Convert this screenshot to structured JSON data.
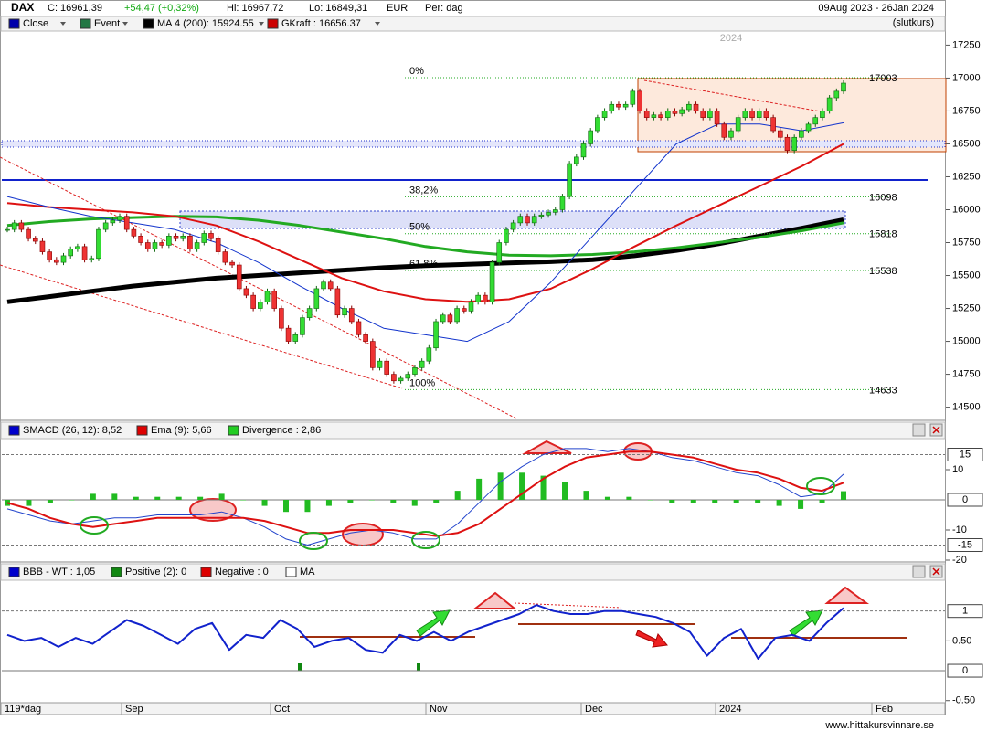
{
  "chart_data": [
    {
      "type": "candlestick",
      "title": "DAX",
      "quote": [
        "C: 16961,39",
        "+54,47 (+0,32%)",
        "Hi: 16967,72",
        "Lo: 16849,31",
        "EUR",
        "Per: dag"
      ],
      "date_range": "09Aug 2023 - 26Jan 2024",
      "price_basis": "(slutkurs)",
      "year_marker": "2024",
      "legend": [
        {
          "label": "Close",
          "color": "#0000aa"
        },
        {
          "label": "Event",
          "color": "#227744"
        },
        {
          "label": "MA 4 (200): 15924.55",
          "color": "#000000"
        },
        {
          "label": "GKraft : 16656.37",
          "color": "#cc0000"
        }
      ],
      "close": [
        15850,
        15900,
        15850,
        15780,
        15760,
        15680,
        15620,
        15600,
        15650,
        15700,
        15720,
        15620,
        15630,
        15850,
        15900,
        15920,
        15950,
        15850,
        15800,
        15750,
        15700,
        15750,
        15730,
        15800,
        15780,
        15800,
        15700,
        15750,
        15820,
        15780,
        15680,
        15600,
        15580,
        15400,
        15350,
        15250,
        15300,
        15380,
        15250,
        15100,
        15000,
        15050,
        15180,
        15250,
        15400,
        15450,
        15400,
        15200,
        15250,
        15150,
        15050,
        15000,
        14800,
        14850,
        14750,
        14700,
        14720,
        14750,
        14800,
        14850,
        14950,
        15150,
        15200,
        15150,
        15250,
        15230,
        15300,
        15350,
        15300,
        15600,
        15750,
        15850,
        15900,
        15950,
        15900,
        15950,
        15960,
        15980,
        16000,
        16100,
        16350,
        16400,
        16500,
        16600,
        16700,
        16750,
        16800,
        16780,
        16800,
        16900,
        16750,
        16700,
        16720,
        16700,
        16750,
        16730,
        16760,
        16800,
        16750,
        16700,
        16750,
        16650,
        16550,
        16600,
        16700,
        16750,
        16700,
        16750,
        16700,
        16600,
        16550,
        16450,
        16550,
        16600,
        16650,
        16700,
        16750,
        16850,
        16900,
        16961.39
      ],
      "up_color": "#33dd33",
      "down_color": "#ee3333",
      "series": [
        {
          "color": "#000000",
          "width": 5,
          "values": [
            15300,
            15340,
            15380,
            15420,
            15450,
            15480,
            15500,
            15520,
            15540,
            15560,
            15575,
            15585,
            15595,
            15605,
            15620,
            15650,
            15690,
            15740,
            15800,
            15860,
            15924.55
          ]
        },
        {
          "color": "#22aa22",
          "width": 3,
          "values": [
            15880,
            15910,
            15930,
            15940,
            15950,
            15945,
            15920,
            15880,
            15830,
            15780,
            15720,
            15680,
            15655,
            15650,
            15660,
            15680,
            15710,
            15750,
            15790,
            15840,
            15900
          ]
        },
        {
          "color": "#dd1111",
          "width": 2,
          "values": [
            16050,
            16020,
            16000,
            15980,
            15950,
            15880,
            15760,
            15620,
            15480,
            15380,
            15320,
            15300,
            15320,
            15400,
            15550,
            15720,
            15880,
            16030,
            16180,
            16330,
            16500
          ]
        },
        {
          "color": "#1133cc",
          "width": 1,
          "values": [
            16100,
            16020,
            15950,
            15900,
            15850,
            15750,
            15600,
            15420,
            15250,
            15100,
            15050,
            15000,
            15150,
            15450,
            15800,
            16150,
            16500,
            16650,
            16650,
            16600,
            16660
          ]
        }
      ],
      "fib_levels": [
        {
          "label": "0%",
          "value": 17003
        },
        {
          "label": "38,2%",
          "value": 16098
        },
        {
          "label": "50%",
          "value": 15818
        },
        {
          "label": "61,8%",
          "value": 15538
        },
        {
          "label": "100%",
          "value": 14633
        }
      ],
      "fib_color": "#22aa22",
      "ylim": [
        14400,
        17350
      ],
      "yticks": [
        14500,
        14750,
        15000,
        15250,
        15500,
        15750,
        16000,
        16250,
        16500,
        16750,
        17000,
        17250
      ],
      "x_labels": [
        "119*dag",
        "Sep",
        "Oct",
        "Nov",
        "Dec",
        "2024",
        "Feb"
      ],
      "footer": "www.hittakursvinnare.se"
    },
    {
      "type": "line",
      "legend": [
        {
          "label": "SMACD (26, 12): 8,52",
          "color": "#0000cc"
        },
        {
          "label": "Ema (9): 5,66",
          "color": "#dd0000"
        },
        {
          "label": "Divergence : 2,86",
          "color": "#22cc22"
        }
      ],
      "series": [
        {
          "color": "#2244cc",
          "width": 1,
          "values": [
            -3,
            -5,
            -7,
            -8,
            -7,
            -6,
            -6,
            -5,
            -5,
            -5,
            -4,
            -6,
            -9,
            -13,
            -15,
            -13,
            -11,
            -10,
            -11,
            -13,
            -13,
            -8,
            -1,
            6,
            11,
            15,
            17,
            17,
            16,
            17,
            16,
            14,
            13,
            11,
            9,
            8,
            5,
            1,
            2,
            8.52
          ]
        },
        {
          "color": "#dd1111",
          "width": 2,
          "values": [
            -1,
            -3,
            -6,
            -8,
            -9,
            -8,
            -7,
            -6,
            -6,
            -6,
            -6,
            -6,
            -7,
            -9,
            -11,
            -11,
            -10,
            -10,
            -10,
            -11,
            -12,
            -11,
            -8,
            -3,
            2,
            7,
            11,
            14,
            15,
            16,
            16,
            15,
            14,
            12,
            10,
            9,
            7,
            4,
            3,
            5.66
          ]
        }
      ],
      "histogram": {
        "color": "#22bb22",
        "values": [
          -2,
          -2,
          -1,
          0,
          2,
          2,
          1,
          1,
          1,
          1,
          2,
          0,
          -2,
          -4,
          -4,
          -2,
          -1,
          0,
          -1,
          -2,
          -1,
          3,
          7,
          9,
          9,
          8,
          6,
          3,
          1,
          1,
          0,
          -1,
          -1,
          -1,
          -1,
          -1,
          -2,
          -3,
          -1,
          2.86
        ]
      },
      "ylim": [
        -20,
        20
      ],
      "yticks": [
        10,
        -10,
        -20
      ],
      "levels": [
        15,
        0,
        -15
      ]
    },
    {
      "type": "line",
      "legend": [
        {
          "label": "BBB - WT : 1,05",
          "color": "#0000cc"
        },
        {
          "label": "Positive (2): 0",
          "color": "#118811"
        },
        {
          "label": "Negative : 0",
          "color": "#dd0000"
        },
        {
          "label": "MA",
          "color": "#ffffff"
        }
      ],
      "series": [
        {
          "color": "#1122cc",
          "width": 2,
          "values": [
            0.6,
            0.5,
            0.55,
            0.4,
            0.55,
            0.45,
            0.65,
            0.85,
            0.75,
            0.6,
            0.45,
            0.7,
            0.8,
            0.35,
            0.6,
            0.55,
            0.85,
            0.7,
            0.4,
            0.5,
            0.55,
            0.35,
            0.3,
            0.6,
            0.5,
            0.65,
            0.5,
            0.65,
            0.75,
            0.85,
            0.95,
            1.1,
            1.0,
            0.95,
            0.95,
            1.0,
            1.0,
            0.95,
            0.9,
            0.8,
            0.65,
            0.25,
            0.55,
            0.7,
            0.2,
            0.55,
            0.6,
            0.5,
            0.8,
            1.05
          ]
        }
      ],
      "ylim": [
        -0.55,
        1.5
      ],
      "yticks": [
        {
          "value": 0.5,
          "label": "0.50"
        },
        {
          "value": -0.5,
          "label": "-0.50"
        }
      ],
      "levels": [
        1,
        0
      ]
    }
  ]
}
